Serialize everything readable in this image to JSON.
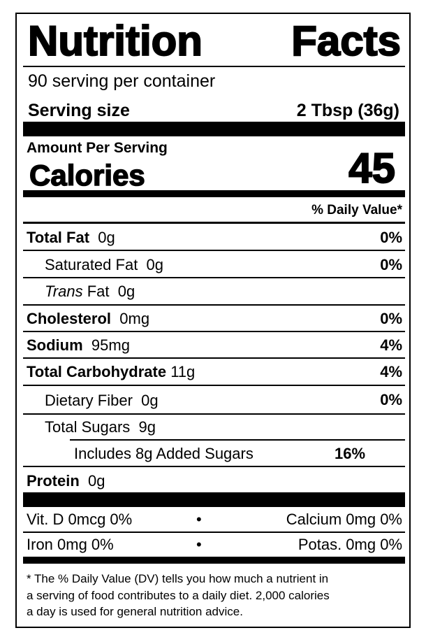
{
  "title": "Nutrition Facts",
  "servings_per_container": "90 serving per container",
  "serving_size": {
    "label": "Serving size",
    "value": "2 Tbsp (36g)"
  },
  "amount_per_serving": "Amount Per Serving",
  "calories": {
    "label": "Calories",
    "value": "45"
  },
  "daily_value_header": "% Daily Value*",
  "nutrients": [
    {
      "name": "Total Fat",
      "amount": "0g",
      "dv": "0%"
    },
    {
      "name": "Saturated Fat",
      "amount": "0g",
      "dv": "0%"
    },
    {
      "name_italic": "Trans",
      "name": "Fat",
      "amount": "0g"
    },
    {
      "name": "Cholesterol",
      "amount": "0mg",
      "dv": "0%"
    },
    {
      "name": "Sodium",
      "amount": "95mg",
      "dv": "4%"
    },
    {
      "name": "Total Carbohydrate",
      "amount": "11g",
      "dv": "4%"
    },
    {
      "name": "Dietary Fiber",
      "amount": "0g",
      "dv": "0%"
    },
    {
      "name": "Total Sugars",
      "amount": "9g"
    },
    {
      "name": "Includes 8g Added Sugars",
      "dv": "16%"
    },
    {
      "name": "Protein",
      "amount": "0g"
    }
  ],
  "vitamins": {
    "separator": "•",
    "rows": [
      {
        "left": "Vit. D 0mcg 0%",
        "right": "Calcium 0mg 0%"
      },
      {
        "left": "Iron 0mg 0%",
        "right": "Potas. 0mg 0%"
      }
    ]
  },
  "footnote": [
    "*  The % Daily Value (DV) tells you how much a nutrient in",
    "a serving of food contributes to a daily diet. 2,000 calories",
    "a day is used for general nutrition advice."
  ]
}
